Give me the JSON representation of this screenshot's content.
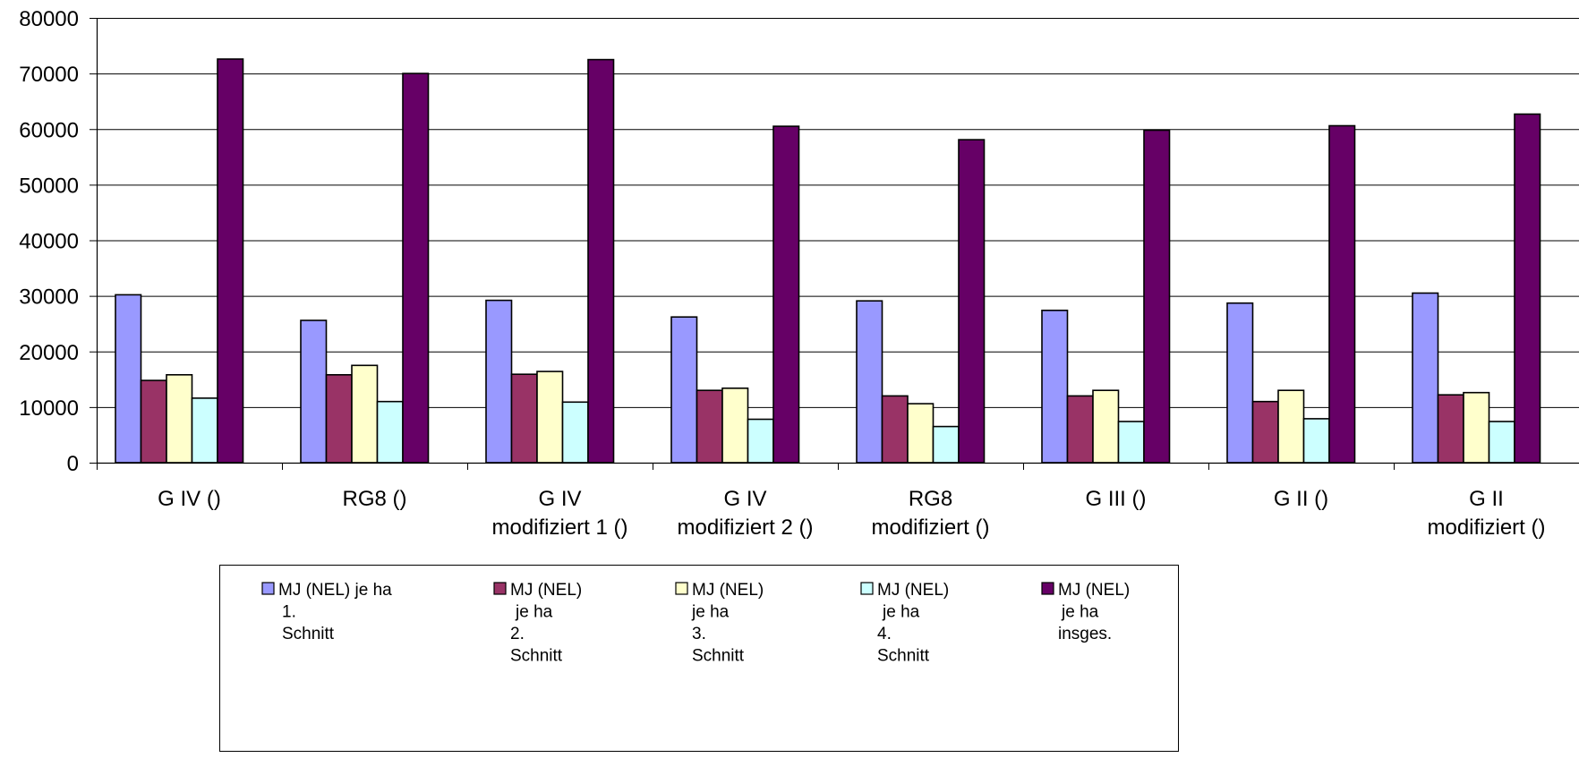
{
  "chart_data": {
    "type": "bar",
    "categories": [
      [
        "G IV ()"
      ],
      [
        "RG8 ()"
      ],
      [
        "G IV",
        "modifiziert 1 ()"
      ],
      [
        "G IV",
        "modifiziert 2 ()"
      ],
      [
        "RG8",
        "modifiziert ()"
      ],
      [
        "G III ()"
      ],
      [
        "G II ()"
      ],
      [
        "G II",
        "modifiziert ()"
      ]
    ],
    "series": [
      {
        "name": [
          "MJ (NEL) je ha",
          "1.",
          "Schnitt"
        ],
        "color": "#9999ff",
        "values": [
          30200,
          25600,
          29200,
          26200,
          29100,
          27400,
          28700,
          30500
        ]
      },
      {
        "name": [
          "MJ (NEL)",
          "je ha",
          "2.",
          "Schnitt"
        ],
        "color": "#993366",
        "values": [
          14800,
          15800,
          15900,
          13000,
          12000,
          12000,
          11000,
          12200
        ]
      },
      {
        "name": [
          "MJ (NEL)",
          "je ha",
          "3.",
          "Schnitt"
        ],
        "color": "#ffffcc",
        "values": [
          15800,
          17500,
          16400,
          13400,
          10600,
          13000,
          13000,
          12600
        ]
      },
      {
        "name": [
          "MJ (NEL)",
          "je ha",
          "4.",
          "Schnitt"
        ],
        "color": "#ccffff",
        "values": [
          11600,
          11000,
          10900,
          7800,
          6500,
          7400,
          7900,
          7400
        ]
      },
      {
        "name": [
          "MJ (NEL)",
          "je ha",
          "insges."
        ],
        "color": "#660066",
        "values": [
          72600,
          70000,
          72500,
          60500,
          58100,
          59800,
          60600,
          62700
        ]
      }
    ],
    "yticks": [
      "0",
      "10000",
      "20000",
      "30000",
      "40000",
      "50000",
      "60000",
      "70000",
      "80000"
    ],
    "ylim": [
      0,
      80000
    ],
    "grid": true,
    "legend_position": "bottom"
  }
}
